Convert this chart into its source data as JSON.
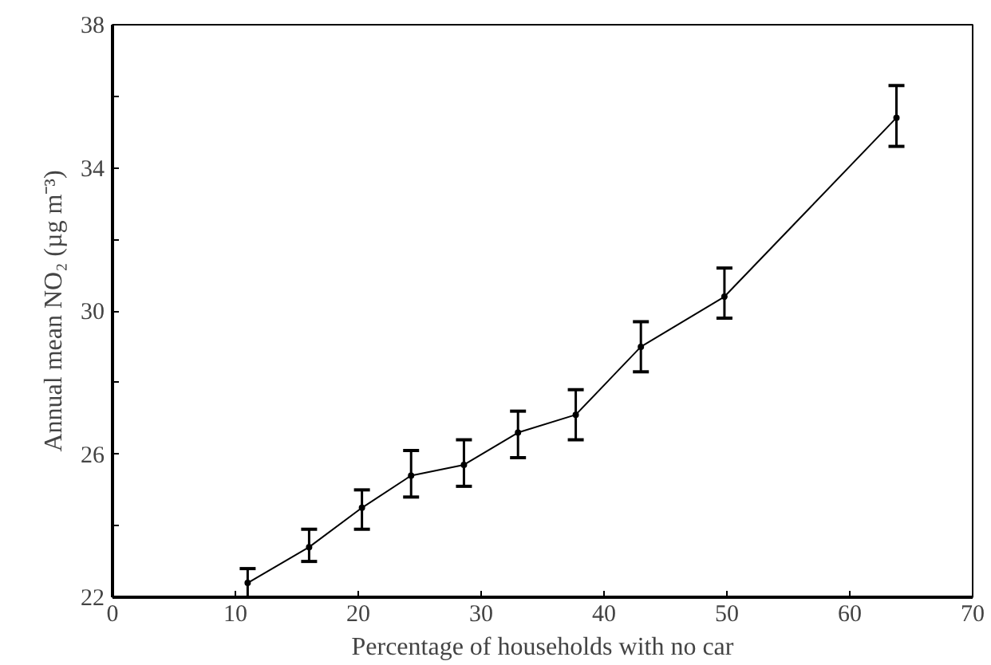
{
  "chart_data": {
    "type": "line",
    "xlabel": "Percentage of households with no car",
    "ylabel": "Annual mean NO₂ (µg m⁻³)",
    "x": [
      11,
      16,
      20.3,
      24.3,
      28.6,
      33,
      37.7,
      43,
      49.8,
      63.8
    ],
    "series": [
      {
        "color": "#000000",
        "values": [
          22.4,
          23.4,
          24.5,
          25.4,
          25.7,
          26.6,
          27.1,
          29.0,
          30.4,
          35.4
        ],
        "errors": [
          [
            22.0,
            22.8
          ],
          [
            23.0,
            23.9
          ],
          [
            23.9,
            25.0
          ],
          [
            24.8,
            26.1
          ],
          [
            25.1,
            26.4
          ],
          [
            25.9,
            27.2
          ],
          [
            26.4,
            27.8
          ],
          [
            28.3,
            29.7
          ],
          [
            29.8,
            31.2
          ],
          [
            34.6,
            36.3
          ]
        ]
      }
    ],
    "xlim": [
      0,
      70
    ],
    "ylim": [
      22,
      38
    ],
    "xticks": [
      0,
      10,
      20,
      30,
      40,
      50,
      60,
      70
    ],
    "yticks": [
      22,
      {
        "value": 24,
        "label": null
      },
      26,
      {
        "value": 28,
        "label": null
      },
      30,
      {
        "value": 32,
        "label": null
      },
      34,
      {
        "value": 36,
        "label": null
      },
      38
    ],
    "grid": false,
    "marker": "circle",
    "line_style": "solid"
  }
}
